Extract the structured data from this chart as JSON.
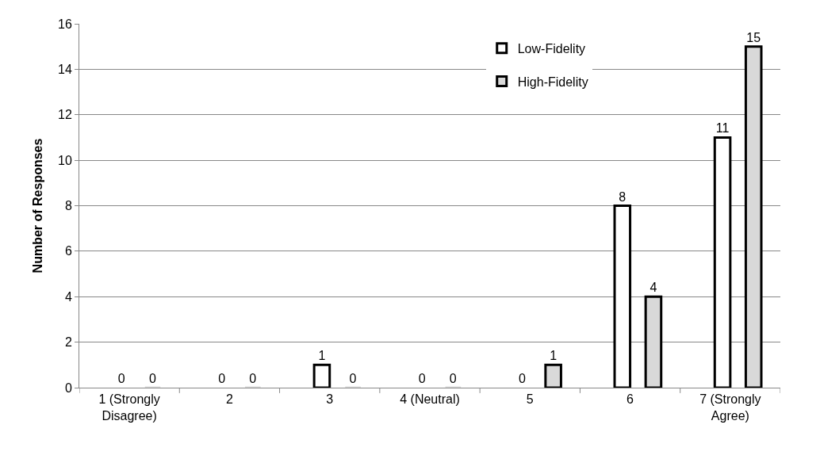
{
  "chart_data": {
    "type": "bar",
    "ylabel": "Number of Responses",
    "categories": [
      "1 (Strongly\nDisagree)",
      "2",
      "3",
      "4 (Neutral)",
      "5",
      "6",
      "7 (Strongly\nAgree)"
    ],
    "series": [
      {
        "name": "Low-Fidelity",
        "color": "#ffffff",
        "values": [
          0,
          0,
          1,
          0,
          0,
          8,
          11
        ]
      },
      {
        "name": "High-Fidelity",
        "color": "#d9d9d9",
        "values": [
          0,
          0,
          0,
          0,
          1,
          4,
          15
        ]
      }
    ],
    "ylim": [
      0,
      16
    ],
    "yticks": [
      0,
      2,
      4,
      6,
      8,
      10,
      12,
      14,
      16
    ],
    "grid": "y",
    "legend": "top",
    "data_labels": true
  }
}
